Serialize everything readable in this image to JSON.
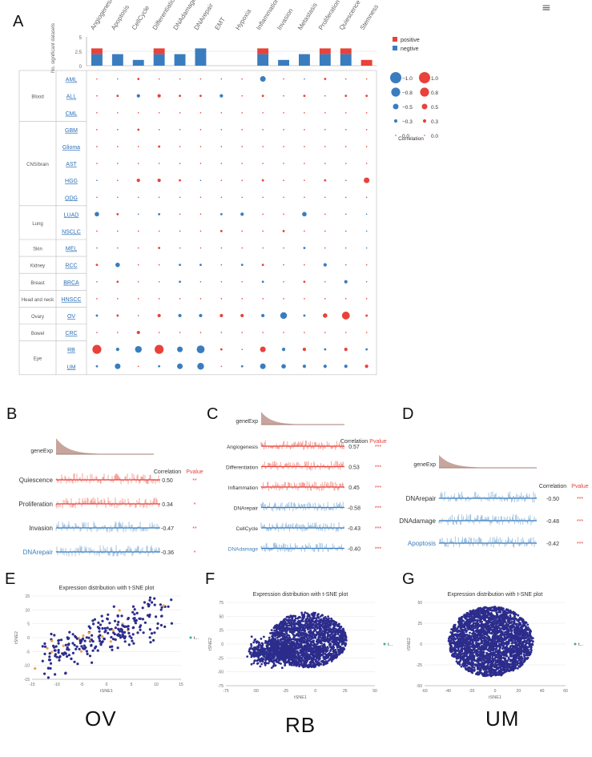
{
  "panel_letters": {
    "a": "A",
    "b": "B",
    "c": "C",
    "d": "D",
    "e": "E",
    "f": "F",
    "g": "G"
  },
  "menu_glyph": "≡",
  "bottom_labels": {
    "e": "OV",
    "f": "RB",
    "g": "UM"
  },
  "colors": {
    "positive": "#e8423a",
    "negative": "#3a7dbf",
    "line_red": "#e8423a",
    "line_blue": "#3a7dbf",
    "fill_red": "#f4a49d",
    "fill_blue": "#a8c6e2",
    "gene_exp": "#a57e74",
    "gene_fill": "#c7a59c",
    "tsne_dot": "#2c2c8c",
    "tsne_dot_orange": "#f0a24a",
    "pvalue": "#e8423a"
  },
  "chart_data": [
    {
      "type": "bar",
      "panel": "A-top",
      "ylabel": "No. significant datasets",
      "ylim": [
        0,
        5
      ],
      "yticks": [
        "5",
        "2.5",
        "0"
      ],
      "categories": [
        "Angiogenesis",
        "Apoptosis",
        "CellCycle",
        "Differentiation",
        "DNAdamage",
        "DNArepair",
        "EMT",
        "Hypoxia",
        "Inflammation",
        "Invasion",
        "Metastasis",
        "Proliferation",
        "Quiescence",
        "Stemness"
      ],
      "legend": [
        "positive",
        "negtive"
      ],
      "series": [
        {
          "name": "positive",
          "values": [
            1,
            0,
            0,
            1,
            0,
            0,
            0,
            0,
            1,
            0,
            0,
            1,
            1,
            1
          ]
        },
        {
          "name": "negtive",
          "values": [
            2,
            2,
            1,
            2,
            2,
            3,
            0,
            0,
            2,
            1,
            2,
            2,
            2,
            0
          ]
        }
      ]
    },
    {
      "type": "bubble",
      "panel": "A-grid",
      "columns": [
        "Angiogenesis",
        "Apoptosis",
        "CellCycle",
        "Differentiation",
        "DNAdamage",
        "DNArepair",
        "EMT",
        "Hypoxia",
        "Inflammation",
        "Invasion",
        "Metastasis",
        "Proliferation",
        "Quiescence",
        "Stemness"
      ],
      "groups": [
        {
          "name": "Blood",
          "rows": [
            "AML",
            "ALL",
            "CML"
          ]
        },
        {
          "name": "CNS/brain",
          "rows": [
            "GBM",
            "Glioma",
            "AST",
            "HGG",
            "ODG"
          ]
        },
        {
          "name": "Lung",
          "rows": [
            "LUAD",
            "NSCLC"
          ]
        },
        {
          "name": "Skin",
          "rows": [
            "MEL"
          ]
        },
        {
          "name": "Kidney",
          "rows": [
            "RCC"
          ]
        },
        {
          "name": "Breast",
          "rows": [
            "BRCA"
          ]
        },
        {
          "name": "Head and neck",
          "rows": [
            "HNSCC"
          ]
        },
        {
          "name": "Ovary",
          "rows": [
            "OV"
          ]
        },
        {
          "name": "Bowel",
          "rows": [
            "CRC"
          ]
        },
        {
          "name": "Eye",
          "rows": [
            "RB",
            "UM"
          ]
        }
      ],
      "values": [
        [
          0.1,
          -0.1,
          0.2,
          0.1,
          0.1,
          0.1,
          -0.1,
          0.1,
          -0.5,
          0.1,
          -0.1,
          0.2,
          0.1,
          0.1
        ],
        [
          0.1,
          0.2,
          -0.3,
          0.3,
          0.2,
          0.2,
          -0.3,
          0.1,
          0.2,
          0.1,
          0.2,
          -0.1,
          0.2,
          0.2
        ],
        [
          0.1,
          0.1,
          0.1,
          0.1,
          0.1,
          0.1,
          0.1,
          0.1,
          0.1,
          0.1,
          0.1,
          0.1,
          0.1,
          0.1
        ],
        [
          0.1,
          0.1,
          0.2,
          0.1,
          0.1,
          0.1,
          0.1,
          0.1,
          0.1,
          0.1,
          0.1,
          0.1,
          0.1,
          0.1
        ],
        [
          0.1,
          0.1,
          0.1,
          0.2,
          0.1,
          0.1,
          0.1,
          0.1,
          0.1,
          0.1,
          0.1,
          0.1,
          0.1,
          0.1
        ],
        [
          0.1,
          0.1,
          0.1,
          0.1,
          0.1,
          0.1,
          0.1,
          0.1,
          0.1,
          0.1,
          0.1,
          0.1,
          0.1,
          0.1
        ],
        [
          -0.1,
          0.1,
          0.3,
          0.3,
          0.2,
          -0.1,
          0.1,
          0.1,
          0.2,
          0.1,
          0.1,
          0.2,
          -0.1,
          0.5
        ],
        [
          0.1,
          0.1,
          0.1,
          0.1,
          0.1,
          0.1,
          0.1,
          0.1,
          0.1,
          0.1,
          0.1,
          0.1,
          0.1,
          0.1
        ],
        [
          -0.4,
          0.2,
          -0.1,
          -0.2,
          0.1,
          0.1,
          -0.2,
          -0.3,
          0.1,
          0.1,
          -0.4,
          0.1,
          -0.1,
          -0.1
        ],
        [
          0.1,
          -0.1,
          0.1,
          0.1,
          -0.1,
          0.1,
          0.2,
          0.1,
          0.1,
          0.2,
          0.1,
          0.1,
          0.1,
          -0.1
        ],
        [
          -0.1,
          0.1,
          0.1,
          0.2,
          -0.1,
          0.1,
          -0.1,
          0.1,
          -0.1,
          -0.1,
          -0.2,
          0.1,
          0.1,
          -0.1
        ],
        [
          0.2,
          -0.4,
          0.1,
          0.1,
          -0.2,
          -0.2,
          0.1,
          -0.2,
          0.2,
          -0.1,
          0.1,
          -0.3,
          -0.1,
          0.1
        ],
        [
          -0.1,
          0.2,
          0.1,
          0.1,
          -0.2,
          -0.1,
          0.1,
          0.1,
          -0.2,
          0.1,
          0.2,
          -0.1,
          -0.3,
          -0.1
        ],
        [
          0.1,
          0.1,
          0.1,
          0.1,
          0.1,
          0.1,
          0.1,
          0.1,
          0.1,
          0.1,
          0.1,
          0.1,
          0.1,
          0.1
        ],
        [
          -0.2,
          0.2,
          -0.1,
          0.3,
          -0.3,
          -0.3,
          0.3,
          0.3,
          -0.3,
          -0.6,
          -0.2,
          0.4,
          0.7,
          0.2
        ],
        [
          0.1,
          0.1,
          0.3,
          0.1,
          0.1,
          0.1,
          0.1,
          0.1,
          0.1,
          0.1,
          0.1,
          0.1,
          0.1,
          0.1
        ],
        [
          0.8,
          -0.3,
          -0.6,
          0.8,
          -0.5,
          -0.7,
          0.2,
          0.1,
          0.5,
          -0.3,
          0.3,
          -0.2,
          0.3,
          -0.2
        ],
        [
          -0.2,
          -0.5,
          0.1,
          -0.2,
          -0.5,
          -0.6,
          0.1,
          -0.2,
          -0.5,
          -0.4,
          -0.3,
          -0.3,
          -0.3,
          0.3
        ]
      ],
      "legend_title": "Correlation",
      "legend_neg": [
        "−1.0",
        "−0.8",
        "−0.5",
        "−0.3",
        "0.0"
      ],
      "legend_pos": [
        "1.0",
        "0.8",
        "0.5",
        "0.3",
        "0.0"
      ],
      "legend_abs": [
        1.0,
        0.8,
        0.5,
        0.3,
        0.0
      ]
    },
    {
      "type": "line",
      "panel": "B",
      "gene_label": "geneExp",
      "header_correlation": "Correlation",
      "header_pvalue": "Pvalue",
      "rows": [
        {
          "label": "Quiescence",
          "value": "0.50",
          "p": "**",
          "sign": "pos"
        },
        {
          "label": "Proliferation",
          "value": "0.34",
          "p": "*",
          "sign": "pos"
        },
        {
          "label": "Invasion",
          "value": "-0.47",
          "p": "**",
          "sign": "neg"
        },
        {
          "label": "DNArepair",
          "value": "-0.36",
          "p": "*",
          "sign": "neg",
          "highlight": true
        }
      ]
    },
    {
      "type": "line",
      "panel": "C",
      "gene_label": "geneExp",
      "header_correlation": "Correlation",
      "header_pvalue": "Pvalue",
      "rows": [
        {
          "label": "Angiogenesis",
          "value": "0.57",
          "p": "***",
          "sign": "pos"
        },
        {
          "label": "Differentiation",
          "value": "0.53",
          "p": "***",
          "sign": "pos"
        },
        {
          "label": "Inflammation",
          "value": "0.45",
          "p": "***",
          "sign": "pos"
        },
        {
          "label": "DNArepair",
          "value": "-0.58",
          "p": "***",
          "sign": "neg"
        },
        {
          "label": "CellCycle",
          "value": "-0.43",
          "p": "***",
          "sign": "neg"
        },
        {
          "label": "DNAdamage",
          "value": "-0.40",
          "p": "***",
          "sign": "neg",
          "highlight": true
        }
      ]
    },
    {
      "type": "line",
      "panel": "D",
      "gene_label": "geneExp",
      "header_correlation": "Correlation",
      "header_pvalue": "Pvalue",
      "rows": [
        {
          "label": "DNArepair",
          "value": "-0.50",
          "p": "***",
          "sign": "neg"
        },
        {
          "label": "DNAdamage",
          "value": "-0.48",
          "p": "***",
          "sign": "neg"
        },
        {
          "label": "Apoptosis",
          "value": "-0.42",
          "p": "***",
          "sign": "neg",
          "highlight": true
        }
      ]
    },
    {
      "type": "scatter",
      "panel": "E",
      "title": "Expression distribution with t-SNE plot",
      "xlabel": "tSNE1",
      "ylabel": "tSNE2",
      "xlim": [
        -15,
        15
      ],
      "ylim": [
        -15,
        15
      ],
      "xticks": [
        "-15",
        "-10",
        "-5",
        "0",
        "5",
        "10",
        "15"
      ],
      "yticks": [
        "15",
        "10",
        "5",
        "0",
        "-5",
        "-10",
        "-15"
      ],
      "legend": "t...",
      "n_points": 260
    },
    {
      "type": "scatter",
      "panel": "F",
      "title": "Expression distribution with t-SNE plot",
      "xlabel": "tSNE1",
      "ylabel": "tSNE2",
      "xlim": [
        -75,
        50
      ],
      "ylim": [
        -75,
        75
      ],
      "xticks": [
        "-75",
        "-50",
        "-25",
        "0",
        "25",
        "50"
      ],
      "yticks": [
        "75",
        "50",
        "25",
        "0",
        "-25",
        "-50",
        "-75"
      ],
      "legend": "t...",
      "n_points": 2200
    },
    {
      "type": "scatter",
      "panel": "G",
      "title": "Expression distribution with t-SNE plot",
      "xlabel": "tSNE1",
      "ylabel": "tSNE2",
      "xlim": [
        -60,
        60
      ],
      "ylim": [
        -50,
        50
      ],
      "xticks": [
        "-60",
        "-40",
        "-20",
        "0",
        "20",
        "40",
        "60"
      ],
      "yticks": [
        "50",
        "25",
        "0",
        "-25",
        "-50"
      ],
      "legend": "t...",
      "n_points": 2600
    }
  ]
}
